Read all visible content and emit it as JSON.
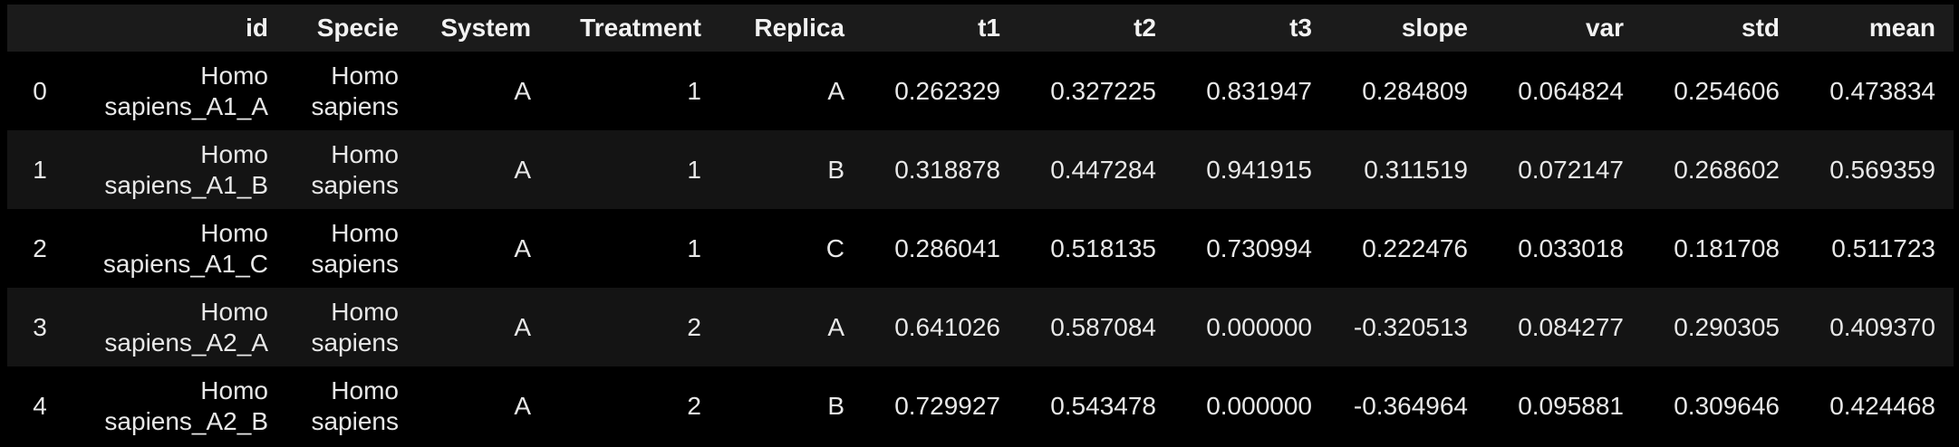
{
  "table": {
    "columns": [
      "id",
      "Specie",
      "System",
      "Treatment",
      "Replica",
      "t1",
      "t2",
      "t3",
      "slope",
      "var",
      "std",
      "mean"
    ],
    "rows": [
      {
        "index": "0",
        "id_line1": "Homo",
        "id_line2": "sapiens_A1_A",
        "specie_line1": "Homo",
        "specie_line2": "sapiens",
        "system": "A",
        "treatment": "1",
        "replica": "A",
        "t1": "0.262329",
        "t2": "0.327225",
        "t3": "0.831947",
        "slope": "0.284809",
        "var": "0.064824",
        "std": "0.254606",
        "mean": "0.473834"
      },
      {
        "index": "1",
        "id_line1": "Homo",
        "id_line2": "sapiens_A1_B",
        "specie_line1": "Homo",
        "specie_line2": "sapiens",
        "system": "A",
        "treatment": "1",
        "replica": "B",
        "t1": "0.318878",
        "t2": "0.447284",
        "t3": "0.941915",
        "slope": "0.311519",
        "var": "0.072147",
        "std": "0.268602",
        "mean": "0.569359"
      },
      {
        "index": "2",
        "id_line1": "Homo",
        "id_line2": "sapiens_A1_C",
        "specie_line1": "Homo",
        "specie_line2": "sapiens",
        "system": "A",
        "treatment": "1",
        "replica": "C",
        "t1": "0.286041",
        "t2": "0.518135",
        "t3": "0.730994",
        "slope": "0.222476",
        "var": "0.033018",
        "std": "0.181708",
        "mean": "0.511723"
      },
      {
        "index": "3",
        "id_line1": "Homo",
        "id_line2": "sapiens_A2_A",
        "specie_line1": "Homo",
        "specie_line2": "sapiens",
        "system": "A",
        "treatment": "2",
        "replica": "A",
        "t1": "0.641026",
        "t2": "0.587084",
        "t3": "0.000000",
        "slope": "-0.320513",
        "var": "0.084277",
        "std": "0.290305",
        "mean": "0.409370"
      },
      {
        "index": "4",
        "id_line1": "Homo",
        "id_line2": "sapiens_A2_B",
        "specie_line1": "Homo",
        "specie_line2": "sapiens",
        "system": "A",
        "treatment": "2",
        "replica": "B",
        "t1": "0.729927",
        "t2": "0.543478",
        "t3": "0.000000",
        "slope": "-0.364964",
        "var": "0.095881",
        "std": "0.309646",
        "mean": "0.424468"
      }
    ]
  }
}
